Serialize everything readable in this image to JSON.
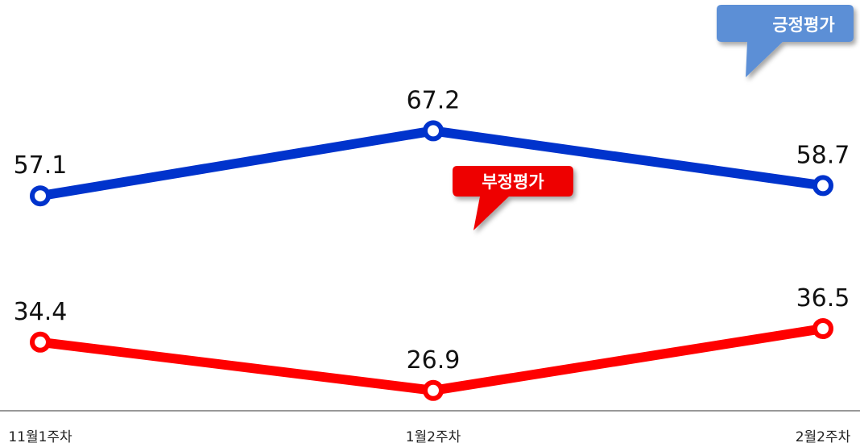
{
  "chart_data": {
    "type": "line",
    "categories": [
      "11월1주차",
      "1월2주차",
      "2월2주차"
    ],
    "series": [
      {
        "name": "긍정평가",
        "values": [
          57.1,
          67.2,
          58.7
        ],
        "color": "#0033cc"
      },
      {
        "name": "부정평가",
        "values": [
          34.4,
          26.9,
          36.5
        ],
        "color": "#ff0000"
      }
    ],
    "ylim": [
      0,
      90
    ],
    "grid": false,
    "legend": "callouts"
  },
  "colors": {
    "positive_line": "#0033cc",
    "negative_line": "#ff0000",
    "positive_callout": "#5b8fd6",
    "negative_callout": "#ee0000",
    "axis": "#999999"
  }
}
